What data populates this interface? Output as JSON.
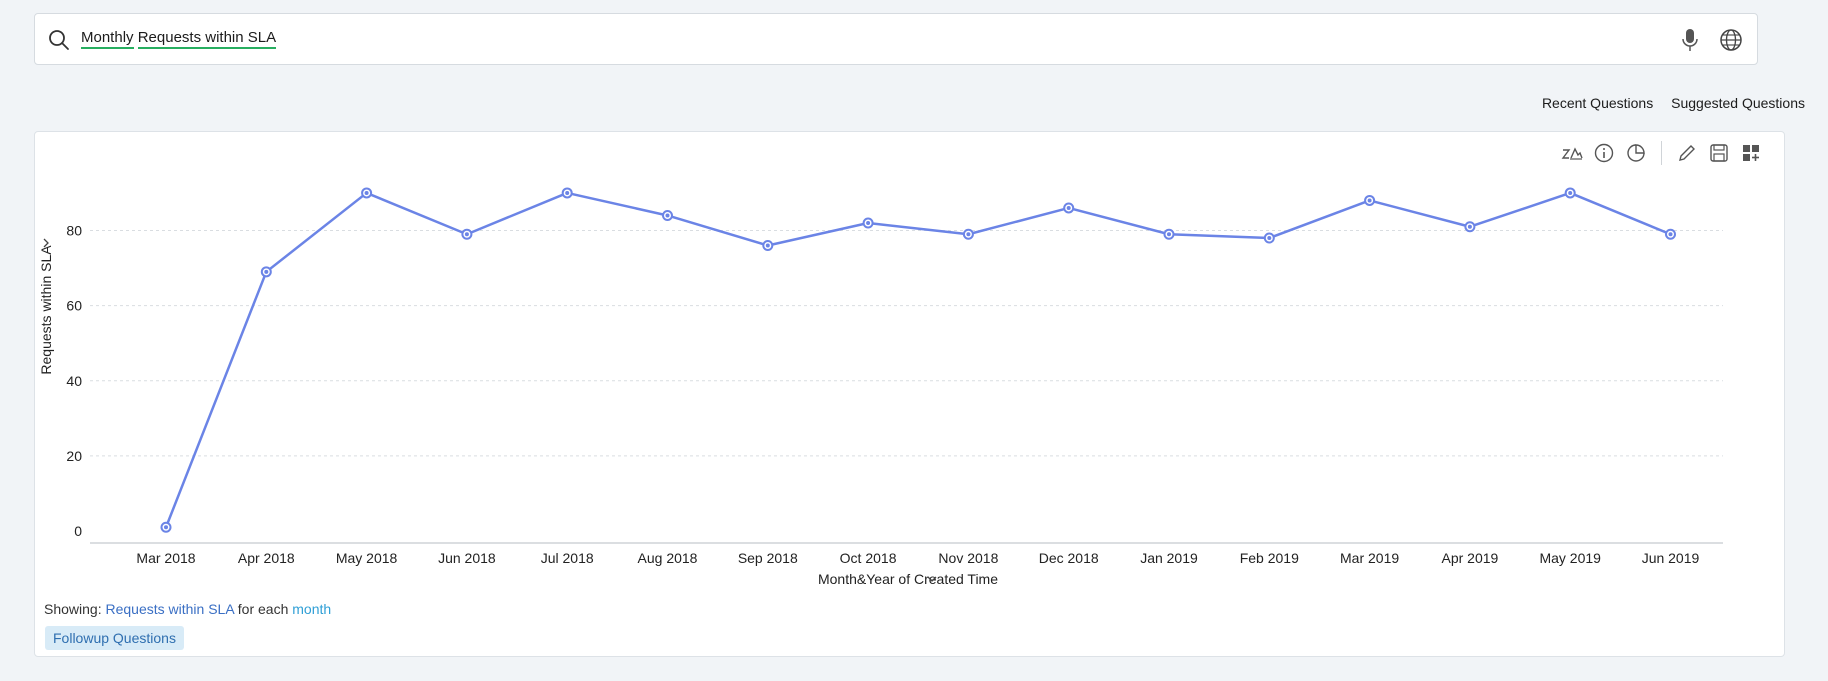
{
  "search": {
    "query_tokens": [
      "Monthly",
      "Requests within SLA"
    ]
  },
  "links": {
    "recent": "Recent Questions",
    "suggested": "Suggested Questions"
  },
  "toolbar": {
    "icons": [
      "chart-type-icon",
      "info-icon",
      "pie-chart-icon",
      "edit-icon",
      "save-icon",
      "add-to-dashboard-icon"
    ]
  },
  "footer": {
    "showing_label": "Showing:",
    "measure": "Requests within SLA",
    "middle": "for each",
    "dimension": "month",
    "followup": "Followup Questions"
  },
  "colors": {
    "line": "#6b84e6",
    "accent": "#27ae60"
  },
  "chart_data": {
    "type": "line",
    "categories": [
      "Mar 2018",
      "Apr 2018",
      "May 2018",
      "Jun 2018",
      "Jul 2018",
      "Aug 2018",
      "Sep 2018",
      "Oct 2018",
      "Nov 2018",
      "Dec 2018",
      "Jan 2019",
      "Feb 2019",
      "Mar 2019",
      "Apr 2019",
      "May 2019",
      "Jun 2019"
    ],
    "series": [
      {
        "values": [
          1,
          69,
          90,
          79,
          90,
          84,
          76,
          82,
          79,
          86,
          79,
          78,
          88,
          81,
          90,
          79
        ]
      }
    ],
    "xlabel": "Month&Year of Created Time",
    "ylabel": "Requests within SLA",
    "yticks": [
      0,
      20,
      40,
      60,
      80
    ],
    "ylim": [
      0,
      90
    ],
    "grid": true
  }
}
